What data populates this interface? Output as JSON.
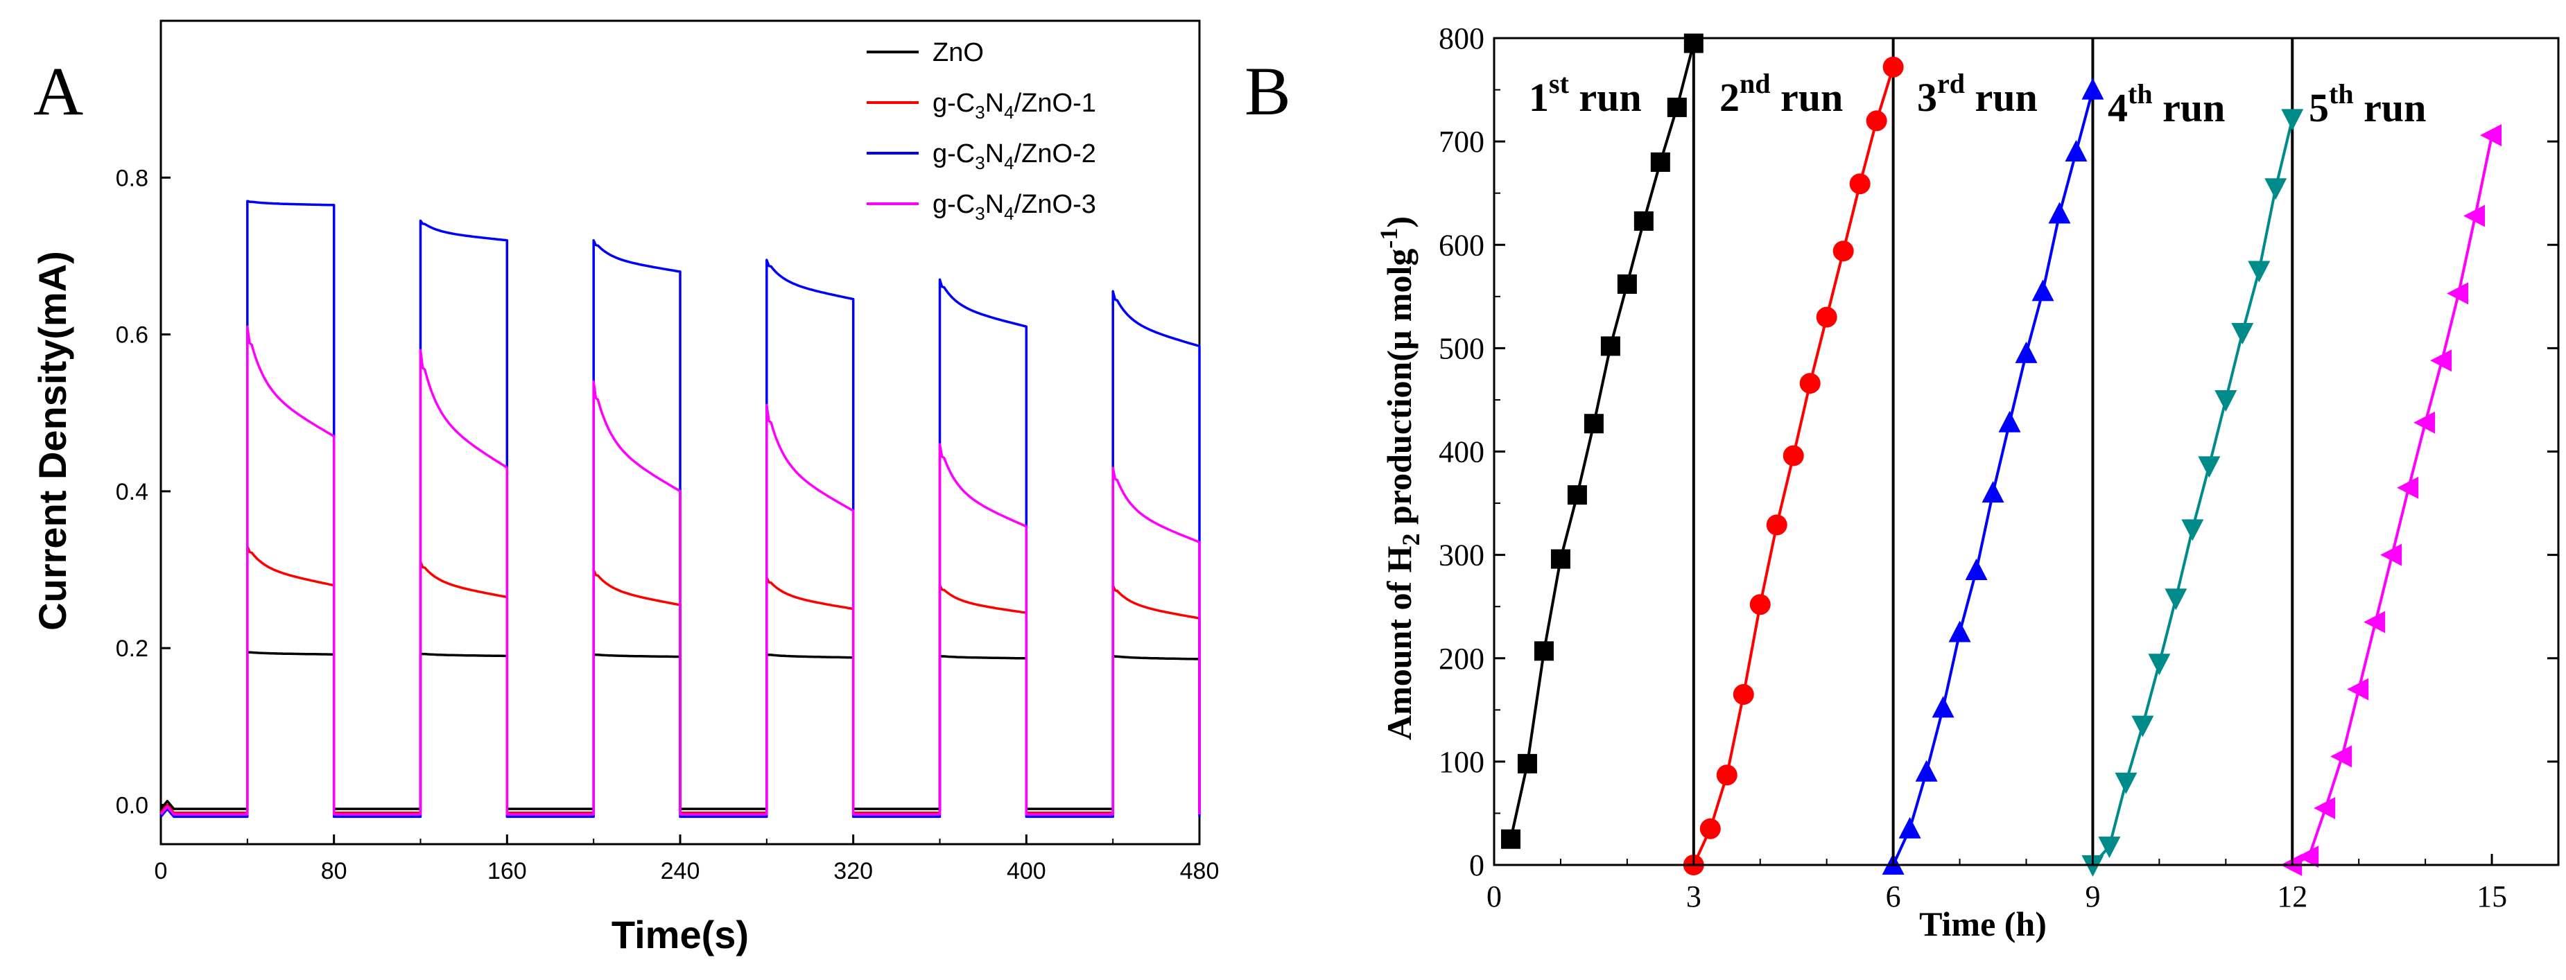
{
  "chart_data": [
    {
      "panel": "A",
      "type": "line",
      "xlabel": "Time(s)",
      "ylabel": "Current Density(mA)",
      "xlim": [
        0,
        480
      ],
      "ylim": [
        -0.05,
        1.0
      ],
      "xticks": [
        "0",
        "80",
        "160",
        "240",
        "320",
        "400",
        "480"
      ],
      "yticks": [
        "0.0",
        "0.2",
        "0.4",
        "0.6",
        "0.8"
      ],
      "legend_position": "top-right",
      "light_on_intervals": [
        [
          40,
          80
        ],
        [
          120,
          160
        ],
        [
          200,
          240
        ],
        [
          280,
          320
        ],
        [
          360,
          400
        ],
        [
          440,
          480
        ]
      ],
      "series": [
        {
          "name": "ZnO",
          "legend_parts": [
            "ZnO",
            "",
            "",
            "",
            ""
          ],
          "color": "#000000",
          "off": -0.005,
          "peaks": [
            0.195,
            0.193,
            0.192,
            0.192,
            0.19,
            0.19
          ],
          "ends": [
            0.192,
            0.19,
            0.189,
            0.188,
            0.187,
            0.186
          ]
        },
        {
          "name": "g-C3N4/ZnO-1",
          "legend_parts": [
            "g-C",
            "3",
            "N",
            "4",
            "/ZnO-1"
          ],
          "color": "#ff0000",
          "off": -0.01,
          "peaks": [
            0.33,
            0.31,
            0.3,
            0.29,
            0.28,
            0.28
          ],
          "ends": [
            0.28,
            0.265,
            0.255,
            0.25,
            0.245,
            0.238
          ]
        },
        {
          "name": "g-C3N4/ZnO-2",
          "legend_parts": [
            "g-C",
            "3",
            "N",
            "4",
            "/ZnO-2"
          ],
          "color": "#0000ff",
          "off": -0.015,
          "peaks": [
            0.77,
            0.745,
            0.72,
            0.695,
            0.67,
            0.655
          ],
          "ends": [
            0.765,
            0.72,
            0.68,
            0.645,
            0.61,
            0.585
          ]
        },
        {
          "name": "g-C3N4/ZnO-3",
          "legend_parts": [
            "g-C",
            "3",
            "N",
            "4",
            "/ZnO-3"
          ],
          "color": "#ff00ff",
          "off": -0.012,
          "peaks": [
            0.61,
            0.58,
            0.54,
            0.51,
            0.46,
            0.43
          ],
          "ends": [
            0.47,
            0.43,
            0.4,
            0.375,
            0.355,
            0.335
          ]
        }
      ]
    },
    {
      "panel": "B",
      "type": "line",
      "xlabel": "Time (h)",
      "ylabel_parts": [
        "Amount of H",
        "2",
        " production(",
        "μ",
        " molg",
        "-1",
        ")"
      ],
      "xlim": [
        0,
        16
      ],
      "ylim": [
        0,
        800
      ],
      "xticks": [
        0,
        3,
        6,
        9,
        12,
        15
      ],
      "yticks": [
        0,
        100,
        200,
        300,
        400,
        500,
        600,
        700,
        800
      ],
      "run_dividers": [
        3,
        6,
        9,
        12
      ],
      "runs": [
        {
          "label": "1",
          "sup": "st",
          "suffix": " run",
          "color": "#000000",
          "marker": "square",
          "x": [
            0.25,
            0.5,
            0.75,
            1.0,
            1.25,
            1.5,
            1.75,
            2.0,
            2.25,
            2.5,
            2.75,
            3.0
          ],
          "y": [
            25,
            98,
            207,
            296,
            358,
            427,
            502,
            562,
            623,
            680,
            733,
            795
          ]
        },
        {
          "label": "2",
          "sup": "nd",
          "suffix": " run",
          "color": "#ff0000",
          "marker": "circle",
          "x": [
            3.0,
            3.25,
            3.5,
            3.75,
            4.0,
            4.25,
            4.5,
            4.75,
            5.0,
            5.25,
            5.5,
            5.75,
            6.0
          ],
          "y": [
            0,
            35,
            87,
            165,
            252,
            329,
            396,
            466,
            530,
            594,
            659,
            720,
            772
          ]
        },
        {
          "label": "3",
          "sup": "rd",
          "suffix": " run",
          "color": "#0000ff",
          "marker": "triangle-up",
          "x": [
            6.0,
            6.25,
            6.5,
            6.75,
            7.0,
            7.25,
            7.5,
            7.75,
            8.0,
            8.25,
            8.5,
            8.75,
            9.0
          ],
          "y": [
            0,
            35,
            90,
            152,
            225,
            285,
            360,
            428,
            495,
            555,
            630,
            690,
            750
          ]
        },
        {
          "label": "4",
          "sup": "th",
          "suffix": " run",
          "color": "#008b8b",
          "marker": "triangle-down",
          "x": [
            9.0,
            9.25,
            9.5,
            9.75,
            10.0,
            10.25,
            10.5,
            10.75,
            11.0,
            11.25,
            11.5,
            11.75,
            12.0
          ],
          "y": [
            0,
            18,
            80,
            135,
            195,
            258,
            325,
            386,
            450,
            515,
            575,
            655,
            722
          ]
        },
        {
          "label": "5",
          "sup": "th",
          "suffix": " run",
          "color": "#ff00ff",
          "marker": "triangle-left",
          "x": [
            12.0,
            12.25,
            12.5,
            12.75,
            13.0,
            13.25,
            13.5,
            13.75,
            14.0,
            14.25,
            14.5,
            14.75,
            15.0
          ],
          "y": [
            0,
            8,
            55,
            105,
            170,
            235,
            300,
            365,
            428,
            488,
            553,
            628,
            706
          ]
        }
      ]
    }
  ]
}
